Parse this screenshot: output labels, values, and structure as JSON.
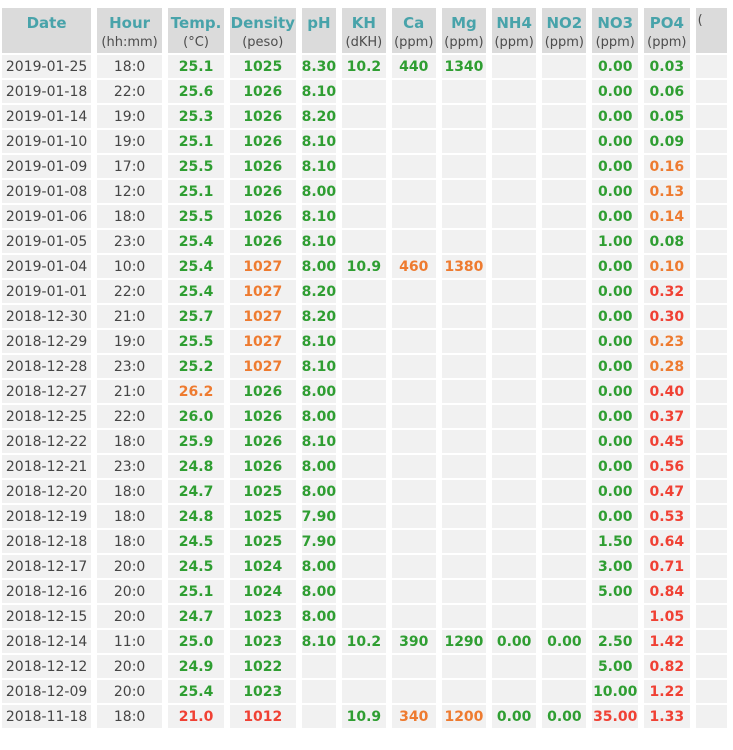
{
  "colors": {
    "header_text": "#48a3aa",
    "header_bg": "#dbdbdb",
    "unit_text": "#4c4c4c",
    "row_bg": "#f1f1f1",
    "date_text": "#454545",
    "green": "#2f9e32",
    "orange": "#ee7b30",
    "red": "#f04134"
  },
  "table": {
    "columns": [
      {
        "key": "date",
        "label": "Date",
        "unit": ""
      },
      {
        "key": "hour",
        "label": "Hour",
        "unit": "(hh:mm)"
      },
      {
        "key": "temp",
        "label": "Temp.",
        "unit": "(°C)"
      },
      {
        "key": "density",
        "label": "Density",
        "unit": "(peso)"
      },
      {
        "key": "ph",
        "label": "pH",
        "unit": ""
      },
      {
        "key": "kh",
        "label": "KH",
        "unit": "(dKH)"
      },
      {
        "key": "ca",
        "label": "Ca",
        "unit": "(ppm)"
      },
      {
        "key": "mg",
        "label": "Mg",
        "unit": "(ppm)"
      },
      {
        "key": "nh4",
        "label": "NH4",
        "unit": "(ppm)"
      },
      {
        "key": "no2",
        "label": "NO2",
        "unit": "(ppm)"
      },
      {
        "key": "no3",
        "label": "NO3",
        "unit": "(ppm)"
      },
      {
        "key": "po4",
        "label": "PO4",
        "unit": "(ppm)"
      },
      {
        "key": "extra",
        "label": "",
        "unit": "("
      }
    ],
    "rows": [
      {
        "date": "2019-01-25",
        "hour": "18:0",
        "values": [
          [
            "25.1",
            "g"
          ],
          [
            "1025",
            "g"
          ],
          [
            "8.30",
            "g"
          ],
          [
            "10.2",
            "g"
          ],
          [
            "440",
            "g"
          ],
          [
            "1340",
            "g"
          ],
          null,
          null,
          [
            "0.00",
            "g"
          ],
          [
            "0.03",
            "g"
          ]
        ]
      },
      {
        "date": "2019-01-18",
        "hour": "22:0",
        "values": [
          [
            "25.6",
            "g"
          ],
          [
            "1026",
            "g"
          ],
          [
            "8.10",
            "g"
          ],
          null,
          null,
          null,
          null,
          null,
          [
            "0.00",
            "g"
          ],
          [
            "0.06",
            "g"
          ]
        ]
      },
      {
        "date": "2019-01-14",
        "hour": "19:0",
        "values": [
          [
            "25.3",
            "g"
          ],
          [
            "1026",
            "g"
          ],
          [
            "8.20",
            "g"
          ],
          null,
          null,
          null,
          null,
          null,
          [
            "0.00",
            "g"
          ],
          [
            "0.05",
            "g"
          ]
        ]
      },
      {
        "date": "2019-01-10",
        "hour": "19:0",
        "values": [
          [
            "25.1",
            "g"
          ],
          [
            "1026",
            "g"
          ],
          [
            "8.10",
            "g"
          ],
          null,
          null,
          null,
          null,
          null,
          [
            "0.00",
            "g"
          ],
          [
            "0.09",
            "g"
          ]
        ]
      },
      {
        "date": "2019-01-09",
        "hour": "17:0",
        "values": [
          [
            "25.5",
            "g"
          ],
          [
            "1026",
            "g"
          ],
          [
            "8.10",
            "g"
          ],
          null,
          null,
          null,
          null,
          null,
          [
            "0.00",
            "g"
          ],
          [
            "0.16",
            "o"
          ]
        ]
      },
      {
        "date": "2019-01-08",
        "hour": "12:0",
        "values": [
          [
            "25.1",
            "g"
          ],
          [
            "1026",
            "g"
          ],
          [
            "8.00",
            "g"
          ],
          null,
          null,
          null,
          null,
          null,
          [
            "0.00",
            "g"
          ],
          [
            "0.13",
            "o"
          ]
        ]
      },
      {
        "date": "2019-01-06",
        "hour": "18:0",
        "values": [
          [
            "25.5",
            "g"
          ],
          [
            "1026",
            "g"
          ],
          [
            "8.10",
            "g"
          ],
          null,
          null,
          null,
          null,
          null,
          [
            "0.00",
            "g"
          ],
          [
            "0.14",
            "o"
          ]
        ]
      },
      {
        "date": "2019-01-05",
        "hour": "23:0",
        "values": [
          [
            "25.4",
            "g"
          ],
          [
            "1026",
            "g"
          ],
          [
            "8.10",
            "g"
          ],
          null,
          null,
          null,
          null,
          null,
          [
            "1.00",
            "g"
          ],
          [
            "0.08",
            "g"
          ]
        ]
      },
      {
        "date": "2019-01-04",
        "hour": "10:0",
        "values": [
          [
            "25.4",
            "g"
          ],
          [
            "1027",
            "o"
          ],
          [
            "8.00",
            "g"
          ],
          [
            "10.9",
            "g"
          ],
          [
            "460",
            "o"
          ],
          [
            "1380",
            "o"
          ],
          null,
          null,
          [
            "0.00",
            "g"
          ],
          [
            "0.10",
            "o"
          ]
        ]
      },
      {
        "date": "2019-01-01",
        "hour": "22:0",
        "values": [
          [
            "25.4",
            "g"
          ],
          [
            "1027",
            "o"
          ],
          [
            "8.20",
            "g"
          ],
          null,
          null,
          null,
          null,
          null,
          [
            "0.00",
            "g"
          ],
          [
            "0.32",
            "r"
          ]
        ]
      },
      {
        "date": "2018-12-30",
        "hour": "21:0",
        "values": [
          [
            "25.7",
            "g"
          ],
          [
            "1027",
            "o"
          ],
          [
            "8.20",
            "g"
          ],
          null,
          null,
          null,
          null,
          null,
          [
            "0.00",
            "g"
          ],
          [
            "0.30",
            "r"
          ]
        ]
      },
      {
        "date": "2018-12-29",
        "hour": "19:0",
        "values": [
          [
            "25.5",
            "g"
          ],
          [
            "1027",
            "o"
          ],
          [
            "8.10",
            "g"
          ],
          null,
          null,
          null,
          null,
          null,
          [
            "0.00",
            "g"
          ],
          [
            "0.23",
            "o"
          ]
        ]
      },
      {
        "date": "2018-12-28",
        "hour": "23:0",
        "values": [
          [
            "25.2",
            "g"
          ],
          [
            "1027",
            "o"
          ],
          [
            "8.10",
            "g"
          ],
          null,
          null,
          null,
          null,
          null,
          [
            "0.00",
            "g"
          ],
          [
            "0.28",
            "o"
          ]
        ]
      },
      {
        "date": "2018-12-27",
        "hour": "21:0",
        "values": [
          [
            "26.2",
            "o"
          ],
          [
            "1026",
            "g"
          ],
          [
            "8.00",
            "g"
          ],
          null,
          null,
          null,
          null,
          null,
          [
            "0.00",
            "g"
          ],
          [
            "0.40",
            "r"
          ]
        ]
      },
      {
        "date": "2018-12-25",
        "hour": "22:0",
        "values": [
          [
            "26.0",
            "g"
          ],
          [
            "1026",
            "g"
          ],
          [
            "8.00",
            "g"
          ],
          null,
          null,
          null,
          null,
          null,
          [
            "0.00",
            "g"
          ],
          [
            "0.37",
            "r"
          ]
        ]
      },
      {
        "date": "2018-12-22",
        "hour": "18:0",
        "values": [
          [
            "25.9",
            "g"
          ],
          [
            "1026",
            "g"
          ],
          [
            "8.10",
            "g"
          ],
          null,
          null,
          null,
          null,
          null,
          [
            "0.00",
            "g"
          ],
          [
            "0.45",
            "r"
          ]
        ]
      },
      {
        "date": "2018-12-21",
        "hour": "23:0",
        "values": [
          [
            "24.8",
            "g"
          ],
          [
            "1026",
            "g"
          ],
          [
            "8.00",
            "g"
          ],
          null,
          null,
          null,
          null,
          null,
          [
            "0.00",
            "g"
          ],
          [
            "0.56",
            "r"
          ]
        ]
      },
      {
        "date": "2018-12-20",
        "hour": "18:0",
        "values": [
          [
            "24.7",
            "g"
          ],
          [
            "1025",
            "g"
          ],
          [
            "8.00",
            "g"
          ],
          null,
          null,
          null,
          null,
          null,
          [
            "0.00",
            "g"
          ],
          [
            "0.47",
            "r"
          ]
        ]
      },
      {
        "date": "2018-12-19",
        "hour": "18:0",
        "values": [
          [
            "24.8",
            "g"
          ],
          [
            "1025",
            "g"
          ],
          [
            "7.90",
            "g"
          ],
          null,
          null,
          null,
          null,
          null,
          [
            "0.00",
            "g"
          ],
          [
            "0.53",
            "r"
          ]
        ]
      },
      {
        "date": "2018-12-18",
        "hour": "18:0",
        "values": [
          [
            "24.5",
            "g"
          ],
          [
            "1025",
            "g"
          ],
          [
            "7.90",
            "g"
          ],
          null,
          null,
          null,
          null,
          null,
          [
            "1.50",
            "g"
          ],
          [
            "0.64",
            "r"
          ]
        ]
      },
      {
        "date": "2018-12-17",
        "hour": "20:0",
        "values": [
          [
            "24.5",
            "g"
          ],
          [
            "1024",
            "g"
          ],
          [
            "8.00",
            "g"
          ],
          null,
          null,
          null,
          null,
          null,
          [
            "3.00",
            "g"
          ],
          [
            "0.71",
            "r"
          ]
        ]
      },
      {
        "date": "2018-12-16",
        "hour": "20:0",
        "values": [
          [
            "25.1",
            "g"
          ],
          [
            "1024",
            "g"
          ],
          [
            "8.00",
            "g"
          ],
          null,
          null,
          null,
          null,
          null,
          [
            "5.00",
            "g"
          ],
          [
            "0.84",
            "r"
          ]
        ]
      },
      {
        "date": "2018-12-15",
        "hour": "20:0",
        "values": [
          [
            "24.7",
            "g"
          ],
          [
            "1023",
            "g"
          ],
          [
            "8.00",
            "g"
          ],
          null,
          null,
          null,
          null,
          null,
          null,
          [
            "1.05",
            "r"
          ]
        ]
      },
      {
        "date": "2018-12-14",
        "hour": "11:0",
        "values": [
          [
            "25.0",
            "g"
          ],
          [
            "1023",
            "g"
          ],
          [
            "8.10",
            "g"
          ],
          [
            "10.2",
            "g"
          ],
          [
            "390",
            "g"
          ],
          [
            "1290",
            "g"
          ],
          [
            "0.00",
            "g"
          ],
          [
            "0.00",
            "g"
          ],
          [
            "2.50",
            "g"
          ],
          [
            "1.42",
            "r"
          ]
        ]
      },
      {
        "date": "2018-12-12",
        "hour": "20:0",
        "values": [
          [
            "24.9",
            "g"
          ],
          [
            "1022",
            "g"
          ],
          null,
          null,
          null,
          null,
          null,
          null,
          [
            "5.00",
            "g"
          ],
          [
            "0.82",
            "r"
          ]
        ]
      },
      {
        "date": "2018-12-09",
        "hour": "20:0",
        "values": [
          [
            "25.4",
            "g"
          ],
          [
            "1023",
            "g"
          ],
          null,
          null,
          null,
          null,
          null,
          null,
          [
            "10.00",
            "g"
          ],
          [
            "1.22",
            "r"
          ]
        ]
      },
      {
        "date": "2018-11-18",
        "hour": "18:0",
        "values": [
          [
            "21.0",
            "r"
          ],
          [
            "1012",
            "r"
          ],
          null,
          [
            "10.9",
            "g"
          ],
          [
            "340",
            "o"
          ],
          [
            "1200",
            "o"
          ],
          [
            "0.00",
            "g"
          ],
          [
            "0.00",
            "g"
          ],
          [
            "35.00",
            "r"
          ],
          [
            "1.33",
            "r"
          ]
        ]
      }
    ]
  }
}
